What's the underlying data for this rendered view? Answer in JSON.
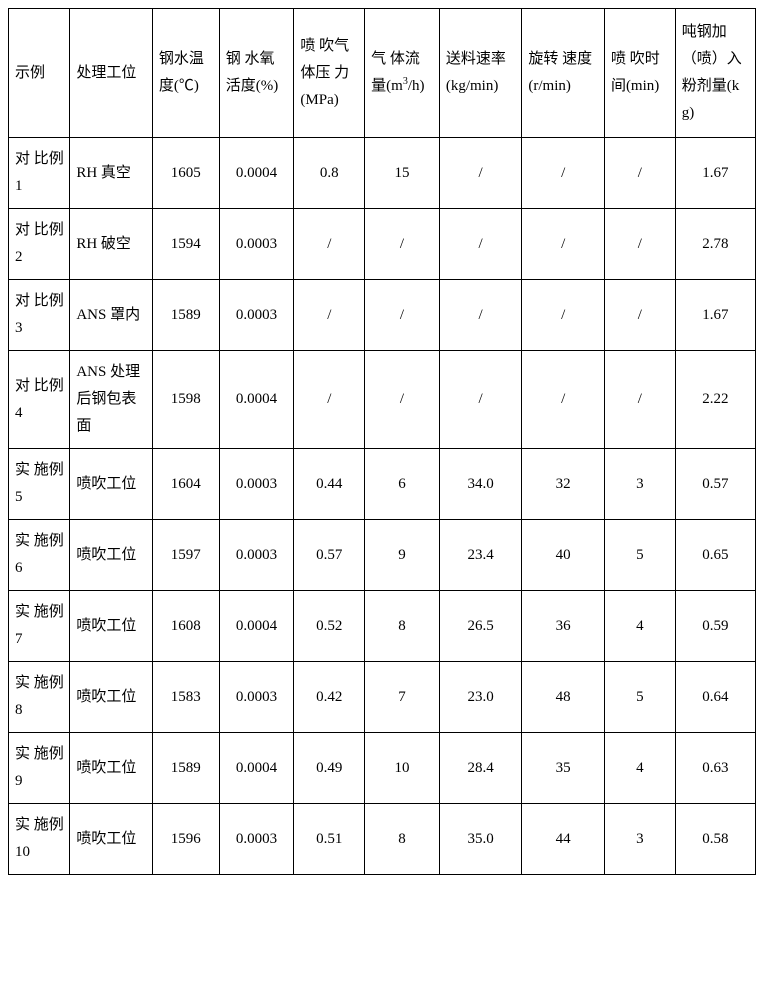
{
  "table": {
    "type": "table",
    "background_color": "#ffffff",
    "border_color": "#000000",
    "text_color": "#000000",
    "font_family": "SimSun",
    "header_fontsize": 15,
    "cell_fontsize": 15,
    "line_height": 1.8,
    "columns": [
      {
        "key": "example",
        "label": "示例",
        "width_pct": 7.8,
        "align": "left"
      },
      {
        "key": "station",
        "label": "处理工位",
        "width_pct": 10.5,
        "align": "left"
      },
      {
        "key": "temp",
        "label": "钢水温度(℃)",
        "width_pct": 8.5,
        "align": "center"
      },
      {
        "key": "o2",
        "label": "钢 水氧 活度(%)",
        "width_pct": 9.5,
        "align": "center"
      },
      {
        "key": "pressure",
        "label": "喷 吹气 体压 力(MPa)",
        "width_pct": 9.0,
        "align": "center"
      },
      {
        "key": "flow",
        "label_html": "气 体流 量(m<sup>3</sup>/h)",
        "label": "气 体流 量(m3/h)",
        "width_pct": 9.5,
        "align": "center"
      },
      {
        "key": "feed",
        "label": "送料速率(kg/min)",
        "width_pct": 10.5,
        "align": "center"
      },
      {
        "key": "rpm",
        "label": "旋转 速度 (r/min)",
        "width_pct": 10.5,
        "align": "center"
      },
      {
        "key": "time",
        "label": "喷 吹时 间(min)",
        "width_pct": 9.0,
        "align": "center"
      },
      {
        "key": "powder",
        "label": "吨钢加（喷）入粉剂量(kg)",
        "width_pct": 10.2,
        "align": "center"
      }
    ],
    "rows": [
      {
        "example": "对 比例 1",
        "station": "RH 真空",
        "temp": "1605",
        "o2": "0.0004",
        "pressure": "0.8",
        "flow": "15",
        "feed": "/",
        "rpm": "/",
        "time": "/",
        "powder": "1.67"
      },
      {
        "example": "对 比例 2",
        "station": "RH 破空",
        "temp": "1594",
        "o2": "0.0003",
        "pressure": "/",
        "flow": "/",
        "feed": "/",
        "rpm": "/",
        "time": "/",
        "powder": "2.78"
      },
      {
        "example": "对 比例 3",
        "station": "ANS 罩内",
        "temp": "1589",
        "o2": "0.0003",
        "pressure": "/",
        "flow": "/",
        "feed": "/",
        "rpm": "/",
        "time": "/",
        "powder": "1.67"
      },
      {
        "example": "对 比例 4",
        "station": "ANS 处理后钢包表面",
        "temp": "1598",
        "o2": "0.0004",
        "pressure": "/",
        "flow": "/",
        "feed": "/",
        "rpm": "/",
        "time": "/",
        "powder": "2.22"
      },
      {
        "example": "实 施例 5",
        "station": "喷吹工位",
        "temp": "1604",
        "o2": "0.0003",
        "pressure": "0.44",
        "flow": "6",
        "feed": "34.0",
        "rpm": "32",
        "time": "3",
        "powder": "0.57"
      },
      {
        "example": "实 施例 6",
        "station": "喷吹工位",
        "temp": "1597",
        "o2": "0.0003",
        "pressure": "0.57",
        "flow": "9",
        "feed": "23.4",
        "rpm": "40",
        "time": "5",
        "powder": "0.65"
      },
      {
        "example": "实 施例 7",
        "station": "喷吹工位",
        "temp": "1608",
        "o2": "0.0004",
        "pressure": "0.52",
        "flow": "8",
        "feed": "26.5",
        "rpm": "36",
        "time": "4",
        "powder": "0.59"
      },
      {
        "example": "实 施例 8",
        "station": "喷吹工位",
        "temp": "1583",
        "o2": "0.0003",
        "pressure": "0.42",
        "flow": "7",
        "feed": "23.0",
        "rpm": "48",
        "time": "5",
        "powder": "0.64"
      },
      {
        "example": "实 施例 9",
        "station": "喷吹工位",
        "temp": "1589",
        "o2": "0.0004",
        "pressure": "0.49",
        "flow": "10",
        "feed": "28.4",
        "rpm": "35",
        "time": "4",
        "powder": "0.63"
      },
      {
        "example": "实 施例 10",
        "station": "喷吹工位",
        "temp": "1596",
        "o2": "0.0003",
        "pressure": "0.51",
        "flow": "8",
        "feed": "35.0",
        "rpm": "44",
        "time": "3",
        "powder": "0.58"
      }
    ]
  }
}
